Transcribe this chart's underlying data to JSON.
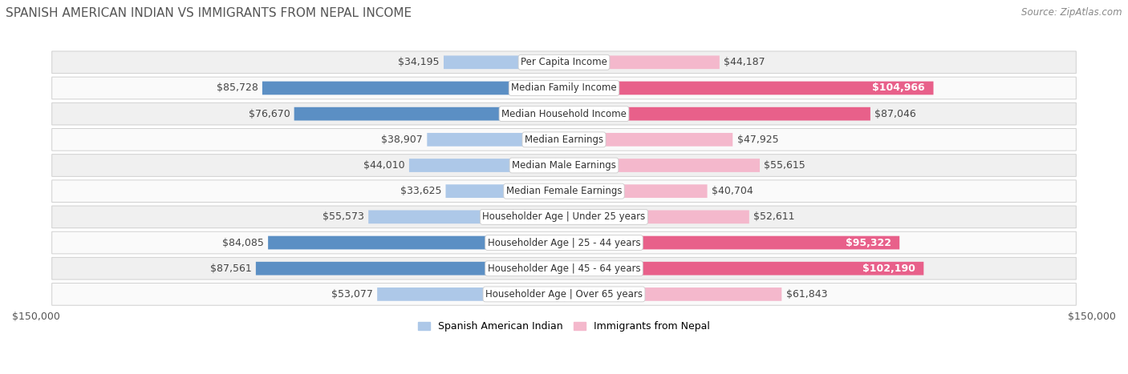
{
  "title": "SPANISH AMERICAN INDIAN VS IMMIGRANTS FROM NEPAL INCOME",
  "source": "Source: ZipAtlas.com",
  "categories": [
    "Per Capita Income",
    "Median Family Income",
    "Median Household Income",
    "Median Earnings",
    "Median Male Earnings",
    "Median Female Earnings",
    "Householder Age | Under 25 years",
    "Householder Age | 25 - 44 years",
    "Householder Age | 45 - 64 years",
    "Householder Age | Over 65 years"
  ],
  "left_values": [
    34195,
    85728,
    76670,
    38907,
    44010,
    33625,
    55573,
    84085,
    87561,
    53077
  ],
  "right_values": [
    44187,
    104966,
    87046,
    47925,
    55615,
    40704,
    52611,
    95322,
    102190,
    61843
  ],
  "left_labels": [
    "$34,195",
    "$85,728",
    "$76,670",
    "$38,907",
    "$44,010",
    "$33,625",
    "$55,573",
    "$84,085",
    "$87,561",
    "$53,077"
  ],
  "right_labels": [
    "$44,187",
    "$104,966",
    "$87,046",
    "$47,925",
    "$55,615",
    "$40,704",
    "$52,611",
    "$95,322",
    "$102,190",
    "$61,843"
  ],
  "right_labels_inside": [
    false,
    true,
    false,
    false,
    false,
    false,
    false,
    true,
    true,
    false
  ],
  "left_color_light": "#adc8e8",
  "left_color_dark": "#5b8fc4",
  "right_color_light": "#f4b8cc",
  "right_color_dark": "#e8608a",
  "max_value": 150000,
  "x_tick_label_left": "$150,000",
  "x_tick_label_right": "$150,000",
  "legend_left": "Spanish American Indian",
  "legend_right": "Immigrants from Nepal",
  "row_bg_odd": "#f0f0f0",
  "row_bg_even": "#fafafa",
  "row_border": "#d0d0d0",
  "title_fontsize": 11,
  "label_fontsize": 9,
  "source_fontsize": 8.5,
  "cat_fontsize": 8.5
}
